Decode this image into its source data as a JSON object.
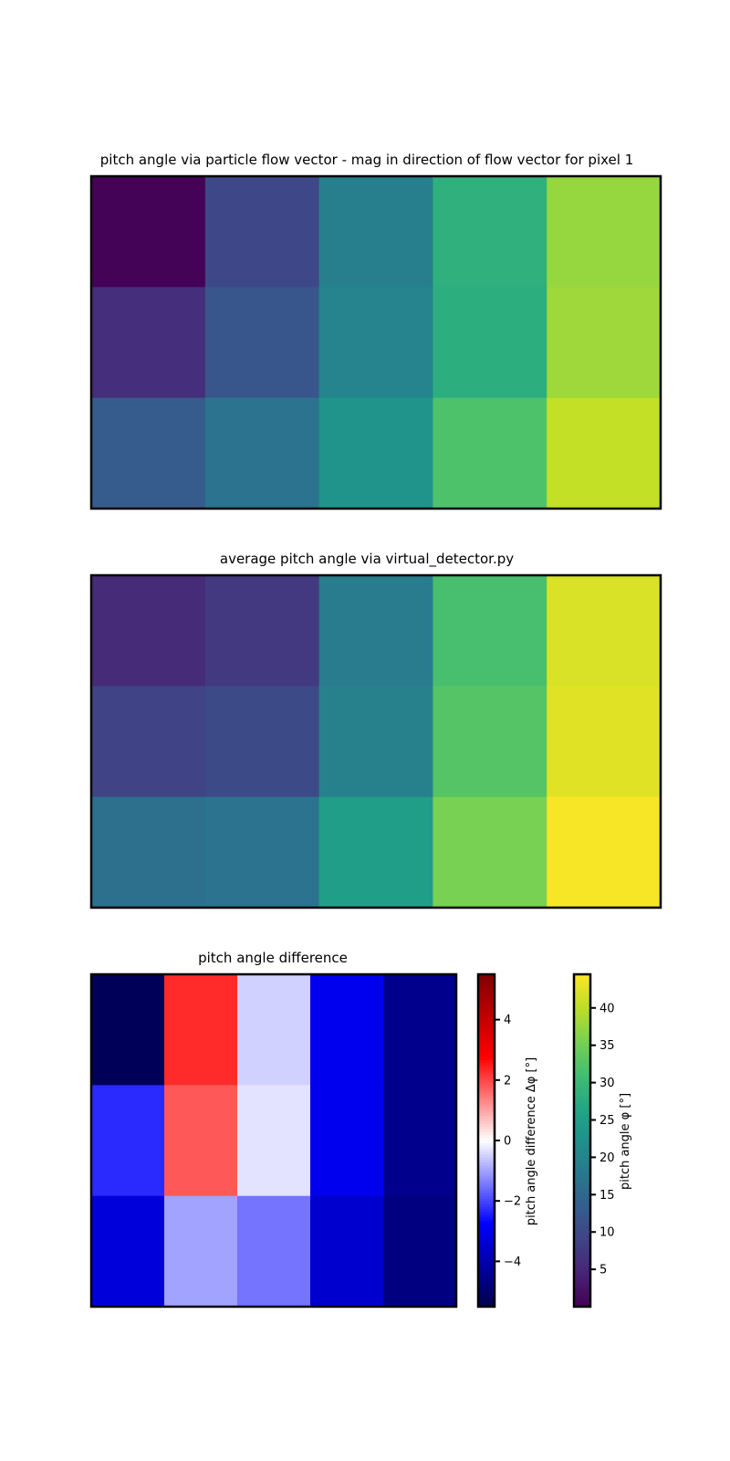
{
  "chart_data": [
    {
      "type": "heatmap",
      "title": "pitch angle via particle flow vector - mag in direction of flow vector for pixel 1",
      "xlabel": "",
      "ylabel": "",
      "colormap": "viridis",
      "vmin": 0,
      "vmax": 44.5,
      "rows": 3,
      "cols": 5,
      "values": [
        [
          0.3,
          9.5,
          19.0,
          28.5,
          37.5
        ],
        [
          6.0,
          12.0,
          20.0,
          28.0,
          38.0
        ],
        [
          13.0,
          17.0,
          23.0,
          32.0,
          40.5
        ]
      ]
    },
    {
      "type": "heatmap",
      "title": "average pitch angle via virtual_detector.py",
      "xlabel": "",
      "ylabel": "",
      "colormap": "viridis",
      "vmin": 0,
      "vmax": 44.5,
      "rows": 3,
      "cols": 5,
      "values": [
        [
          5.5,
          7.5,
          18.5,
          31.5,
          42.0
        ],
        [
          9.0,
          10.0,
          19.5,
          32.5,
          42.5
        ],
        [
          16.5,
          17.0,
          25.0,
          35.5,
          44.0
        ]
      ]
    },
    {
      "type": "heatmap",
      "title": "pitch angle difference",
      "xlabel": "",
      "ylabel": "",
      "colormap": "seismic",
      "vmin": -5.5,
      "vmax": 5.5,
      "rows": 3,
      "cols": 5,
      "values": [
        [
          -5.3,
          2.3,
          -0.5,
          -3.0,
          -4.5
        ],
        [
          -2.3,
          1.8,
          -0.3,
          -3.0,
          -4.5
        ],
        [
          -3.3,
          -1.0,
          -1.5,
          -3.5,
          -4.7
        ]
      ]
    }
  ],
  "colorbars": [
    {
      "name": "diff",
      "label": "pitch angle difference Δφ [°]",
      "colormap": "seismic",
      "vmin": -5.5,
      "vmax": 5.5,
      "ticks": [
        -4,
        -2,
        0,
        2,
        4
      ],
      "tick_labels": [
        "−4",
        "−2",
        "0",
        "2",
        "4"
      ]
    },
    {
      "name": "pitch",
      "label": "pitch angle φ [°]",
      "colormap": "viridis",
      "vmin": 0,
      "vmax": 44.5,
      "ticks": [
        5,
        10,
        15,
        20,
        25,
        30,
        35,
        40
      ],
      "tick_labels": [
        "5",
        "10",
        "15",
        "20",
        "25",
        "30",
        "35",
        "40"
      ]
    }
  ]
}
